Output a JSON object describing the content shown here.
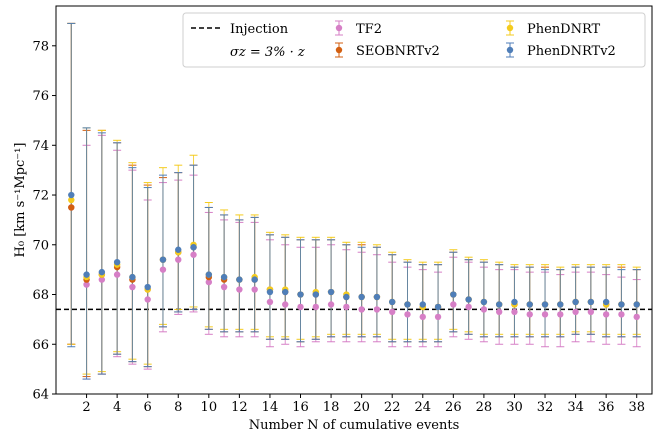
{
  "chart_data": {
    "type": "scatter",
    "xlabel": "Number N of cumulative events",
    "ylabel": "H₀ [km s⁻¹Mpc⁻¹]",
    "xlim": [
      0,
      39
    ],
    "ylim": [
      64,
      79.6
    ],
    "xticks": [
      2,
      4,
      6,
      8,
      10,
      12,
      14,
      16,
      18,
      20,
      22,
      24,
      26,
      28,
      30,
      32,
      34,
      36,
      38
    ],
    "yticks": [
      64,
      66,
      68,
      70,
      72,
      74,
      76,
      78
    ],
    "grid": false,
    "legend_position": "top-right",
    "reference_line": {
      "label": "Injection",
      "y": 67.4,
      "style": "dashed",
      "color": "#000000"
    },
    "legend_note": "σz = 3% · z",
    "x": [
      1,
      2,
      3,
      4,
      5,
      6,
      7,
      8,
      9,
      10,
      11,
      12,
      13,
      14,
      15,
      16,
      17,
      18,
      19,
      20,
      21,
      22,
      23,
      24,
      25,
      26,
      27,
      28,
      29,
      30,
      31,
      32,
      33,
      34,
      35,
      36,
      37,
      38
    ],
    "series": [
      {
        "name": "TF2",
        "color": "#d67fc6",
        "values": [
          71.5,
          68.4,
          68.6,
          68.8,
          68.3,
          67.8,
          69.0,
          69.4,
          69.6,
          68.5,
          68.3,
          68.2,
          68.2,
          67.7,
          67.6,
          67.5,
          67.5,
          67.6,
          67.5,
          67.4,
          67.4,
          67.3,
          67.2,
          67.1,
          67.1,
          67.6,
          67.5,
          67.4,
          67.3,
          67.3,
          67.2,
          67.2,
          67.2,
          67.3,
          67.3,
          67.2,
          67.2,
          67.1
        ],
        "err_low": [
          66.0,
          64.6,
          64.8,
          65.5,
          65.2,
          65.0,
          66.5,
          67.2,
          67.3,
          66.4,
          66.3,
          66.3,
          66.3,
          65.9,
          66.0,
          65.9,
          66.1,
          66.1,
          66.1,
          66.1,
          66.1,
          65.9,
          65.9,
          65.9,
          65.9,
          66.3,
          66.2,
          66.1,
          66.0,
          66.0,
          66.0,
          65.9,
          65.9,
          66.1,
          66.1,
          66.0,
          66.0,
          65.9
        ],
        "err_high": [
          78.9,
          74.0,
          74.4,
          73.8,
          73.0,
          71.8,
          72.5,
          72.6,
          72.8,
          71.3,
          71.0,
          70.9,
          70.9,
          70.2,
          70.0,
          69.9,
          69.9,
          70.0,
          69.8,
          69.7,
          69.6,
          69.3,
          69.1,
          69.0,
          68.9,
          69.5,
          69.3,
          69.1,
          69.0,
          69.0,
          68.9,
          68.9,
          68.8,
          68.9,
          68.9,
          68.8,
          68.7,
          68.6
        ]
      },
      {
        "name": "SEOBNRTv2",
        "color": "#d35f10",
        "values": [
          71.5,
          68.6,
          68.8,
          69.1,
          68.6,
          68.2,
          69.4,
          69.7,
          69.9,
          68.7,
          68.6,
          68.6,
          68.6,
          68.2,
          68.1,
          68.0,
          68.0,
          68.1,
          67.9,
          67.9,
          67.9,
          67.7,
          67.6,
          67.5,
          67.5,
          68.0,
          67.8,
          67.7,
          67.6,
          67.6,
          67.6,
          67.6,
          67.6,
          67.7,
          67.7,
          67.6,
          67.6,
          67.6
        ],
        "err_low": [
          66.0,
          64.7,
          64.8,
          65.6,
          65.3,
          65.1,
          66.7,
          67.3,
          67.4,
          66.6,
          66.5,
          66.5,
          66.5,
          66.2,
          66.2,
          66.1,
          66.2,
          66.3,
          66.3,
          66.3,
          66.3,
          66.1,
          66.1,
          66.1,
          66.1,
          66.5,
          66.4,
          66.3,
          66.3,
          66.3,
          66.3,
          66.3,
          66.3,
          66.4,
          66.4,
          66.3,
          66.3,
          66.3
        ],
        "err_high": [
          78.9,
          74.6,
          74.6,
          74.1,
          73.2,
          72.4,
          72.7,
          72.9,
          73.2,
          71.5,
          71.2,
          71.0,
          71.1,
          70.4,
          70.3,
          70.2,
          70.2,
          70.2,
          70.0,
          70.0,
          69.9,
          69.6,
          69.3,
          69.2,
          69.2,
          69.7,
          69.4,
          69.3,
          69.2,
          69.1,
          69.1,
          69.1,
          69.0,
          69.1,
          69.1,
          69.1,
          69.1,
          69.0
        ]
      },
      {
        "name": "PhenDNRT",
        "color": "#f4cb1e",
        "values": [
          71.8,
          68.7,
          68.8,
          69.2,
          68.7,
          68.2,
          69.4,
          69.7,
          70.0,
          68.8,
          68.7,
          68.6,
          68.7,
          68.2,
          68.2,
          68.0,
          68.1,
          68.1,
          68.0,
          67.9,
          67.9,
          67.7,
          67.6,
          67.5,
          67.5,
          68.0,
          67.8,
          67.7,
          67.6,
          67.6,
          67.6,
          67.6,
          67.6,
          67.7,
          67.7,
          67.6,
          67.6,
          67.6
        ],
        "err_low": [
          66.0,
          64.8,
          64.9,
          65.7,
          65.4,
          65.2,
          66.8,
          67.4,
          67.5,
          66.7,
          66.6,
          66.6,
          66.6,
          66.3,
          66.3,
          66.2,
          66.3,
          66.4,
          66.4,
          66.4,
          66.4,
          66.2,
          66.2,
          66.2,
          66.2,
          66.6,
          66.5,
          66.4,
          66.4,
          66.4,
          66.4,
          66.4,
          66.4,
          66.5,
          66.5,
          66.4,
          66.4,
          66.4
        ],
        "err_high": [
          78.9,
          74.7,
          74.6,
          74.2,
          73.3,
          72.5,
          73.1,
          73.2,
          73.6,
          71.7,
          71.4,
          71.2,
          71.2,
          70.5,
          70.4,
          70.3,
          70.3,
          70.3,
          70.1,
          70.1,
          70.0,
          69.7,
          69.4,
          69.3,
          69.3,
          69.8,
          69.5,
          69.4,
          69.3,
          69.2,
          69.2,
          69.2,
          69.1,
          69.2,
          69.2,
          69.2,
          69.2,
          69.1
        ]
      },
      {
        "name": "PhenDNRTv2",
        "color": "#4f7eb8",
        "values": [
          72.0,
          68.8,
          68.9,
          69.3,
          68.7,
          68.3,
          69.4,
          69.8,
          69.9,
          68.8,
          68.7,
          68.6,
          68.6,
          68.1,
          68.1,
          68.0,
          68.0,
          68.1,
          67.9,
          67.9,
          67.9,
          67.7,
          67.6,
          67.6,
          67.5,
          68.0,
          67.8,
          67.7,
          67.6,
          67.7,
          67.6,
          67.6,
          67.6,
          67.7,
          67.7,
          67.7,
          67.6,
          67.6
        ],
        "err_low": [
          65.9,
          64.6,
          64.8,
          65.6,
          65.3,
          65.1,
          66.7,
          67.3,
          67.4,
          66.6,
          66.5,
          66.5,
          66.5,
          66.2,
          66.2,
          66.1,
          66.2,
          66.3,
          66.3,
          66.3,
          66.3,
          66.1,
          66.1,
          66.1,
          66.1,
          66.5,
          66.4,
          66.3,
          66.3,
          66.3,
          66.3,
          66.3,
          66.3,
          66.4,
          66.4,
          66.3,
          66.3,
          66.3
        ],
        "err_high": [
          78.9,
          74.7,
          74.5,
          74.1,
          73.1,
          72.3,
          72.8,
          72.9,
          73.2,
          71.5,
          71.2,
          71.0,
          71.1,
          70.4,
          70.3,
          70.2,
          70.2,
          70.2,
          70.0,
          69.9,
          69.9,
          69.6,
          69.3,
          69.2,
          69.2,
          69.7,
          69.4,
          69.3,
          69.2,
          69.1,
          69.1,
          69.0,
          69.0,
          69.1,
          69.1,
          69.1,
          69.0,
          69.0
        ]
      }
    ]
  }
}
